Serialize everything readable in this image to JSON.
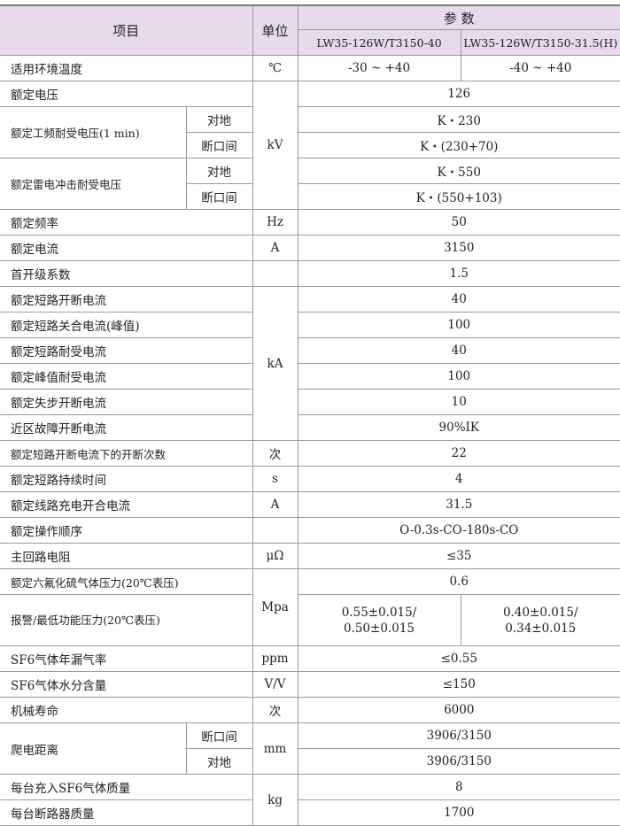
{
  "header": {
    "item": "项目",
    "unit": "单位",
    "params": "参  数",
    "model_a": "LW35-126W/T3150-40",
    "model_b": "LW35-126W/T3150-31.5(H)"
  },
  "rows": [
    {
      "item": "适用环境温度",
      "unit": "℃",
      "values": [
        "-30 ~ +40",
        "-40 ~ +40"
      ]
    },
    {
      "item": "额定电压",
      "unit": "kV",
      "value": "126"
    },
    {
      "item": "额定工频耐受电压(1 min)",
      "sub": "对地",
      "value": "K・230"
    },
    {
      "sub": "断口间",
      "value": "K・(230+70)"
    },
    {
      "item": "额定雷电冲击耐受电压",
      "sub": "对地",
      "value": "K・550"
    },
    {
      "sub": "断口间",
      "value": "K・(550+103)"
    },
    {
      "item": "额定频率",
      "unit": "Hz",
      "value": "50"
    },
    {
      "item": "额定电流",
      "unit": "A",
      "value": "3150"
    },
    {
      "item": "首开级系数",
      "unit": "",
      "value": "1.5"
    },
    {
      "item": "额定短路开断电流",
      "unit": "kA",
      "value": "40"
    },
    {
      "item": "额定短路关合电流(峰值)",
      "value": "100"
    },
    {
      "item": "额定短路耐受电流",
      "value": "40"
    },
    {
      "item": "额定峰值耐受电流",
      "value": "100"
    },
    {
      "item": "额定失步开断电流",
      "value": "10"
    },
    {
      "item": "近区故障开断电流",
      "value": "90%IK"
    },
    {
      "item": "额定短路开断电流下的开断次数",
      "unit": "次",
      "value": "22"
    },
    {
      "item": "额定短路持续时间",
      "unit": "s",
      "value": "4"
    },
    {
      "item": "额定线路充电开合电流",
      "unit": "A",
      "value": "31.5"
    },
    {
      "item": "额定操作顺序",
      "unit": "",
      "value": "O-0.3s-CO-180s-CO"
    },
    {
      "item": "主回路电阻",
      "unit": "μΩ",
      "value": "≤35"
    },
    {
      "item": "额定六氟化硫气体压力(20℃表压)",
      "unit": "Mpa",
      "value": "0.6"
    },
    {
      "item": "报警/最低功能压力(20℃表压)",
      "values": [
        "0.55±0.015/\n0.50±0.015",
        "0.40±0.015/\n0.34±0.015"
      ]
    },
    {
      "item": "SF6气体年漏气率",
      "unit": "ppm",
      "value": "≤0.55"
    },
    {
      "item": "SF6气体水分含量",
      "unit": "V/V",
      "value": "≤150"
    },
    {
      "item": "机械寿命",
      "unit": "次",
      "value": "6000"
    },
    {
      "item": "爬电距离",
      "sub": "断口间",
      "unit": "mm",
      "value": "3906/3150"
    },
    {
      "sub": "对地",
      "value": "3906/3150"
    },
    {
      "item": "每台充入SF6气体质量",
      "unit": "kg",
      "value": "8"
    },
    {
      "item": "每台断路器质量",
      "value": "1700"
    }
  ]
}
